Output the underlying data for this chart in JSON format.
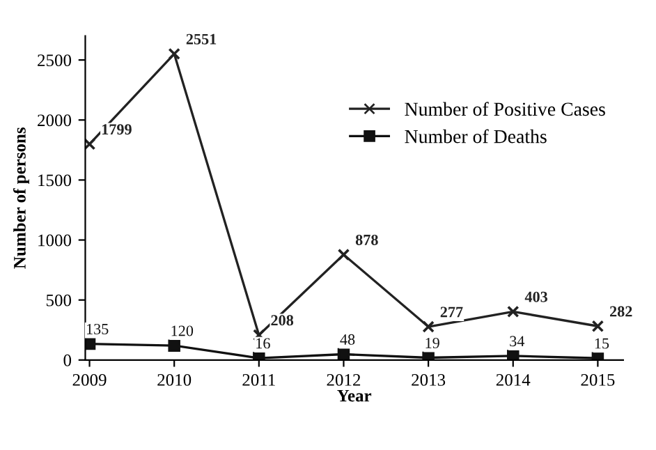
{
  "chart_data": {
    "type": "line",
    "xlabel": "Year",
    "ylabel": "Number of persons",
    "categories": [
      "2009",
      "2010",
      "2011",
      "2012",
      "2013",
      "2014",
      "2015"
    ],
    "ylim": [
      0,
      2700
    ],
    "yticks": [
      0,
      500,
      1000,
      1500,
      2000,
      2500
    ],
    "data_labels": true,
    "grid": false,
    "legend": "top right",
    "series": [
      {
        "name": "Number of Positive Cases",
        "color": "#222222",
        "marker": "cross",
        "values": [
          1799,
          2551,
          208,
          878,
          277,
          403,
          282
        ]
      },
      {
        "name": "Number of Deaths",
        "color": "#111111",
        "marker": "square",
        "values": [
          135,
          120,
          16,
          48,
          19,
          34,
          15
        ]
      }
    ]
  }
}
